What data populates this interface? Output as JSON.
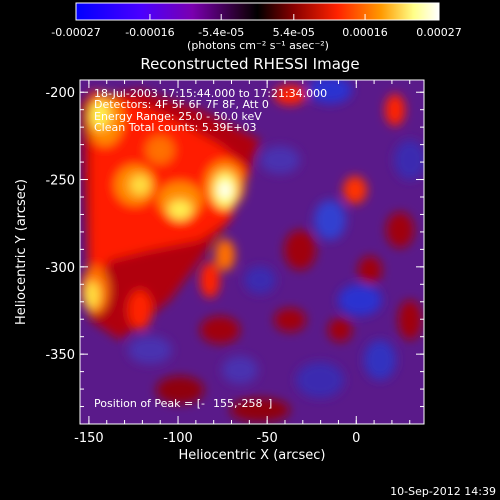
{
  "colorbar": {
    "tick_labels": [
      "-0.00027",
      "-0.00016",
      "-5.4e-05",
      "5.4e-05",
      "0.00016",
      "0.00027"
    ],
    "tick_values": [
      -0.00027,
      -0.00016,
      -5.4e-05,
      5.4e-05,
      0.00016,
      0.00027
    ],
    "range": [
      -0.00027,
      0.00027
    ],
    "units": "(photons cm⁻² s⁻¹ asec⁻²)",
    "colors": [
      "#0000ff",
      "#5500ff",
      "#880099",
      "#000000",
      "#aa0000",
      "#ff4400",
      "#ff9900",
      "#ffffaa",
      "#ffffff"
    ]
  },
  "title": "Reconstructed RHESSI Image",
  "info": {
    "line1": "18-Jul-2003 17:15:44.000 to 17:21:34.000",
    "line2": "Detectors: 4F 5F 6F 7F 8F, Att 0",
    "line3": "Energy Range: 25.0 - 50.0 keV",
    "line4": "Clean     Total counts: 5.39E+03"
  },
  "peak_label": "Position of Peak = [-",
  "peak_value_text": "155,-258",
  "axes": {
    "xlabel": "Heliocentric X (arcsec)",
    "ylabel": "Heliocentric Y (arcsec)",
    "xlim": [
      -155,
      38
    ],
    "ylim": [
      -390,
      -193
    ],
    "x_ticks": [
      -150,
      -100,
      -50,
      0
    ],
    "x_tick_labels": [
      "-150",
      "-100",
      "-50",
      "0"
    ],
    "y_ticks": [
      -200,
      -250,
      -300,
      -350
    ],
    "y_tick_labels": [
      "-200",
      "-250",
      "-300",
      "-350"
    ]
  },
  "timestamp": "10-Sep-2012 14:39"
}
